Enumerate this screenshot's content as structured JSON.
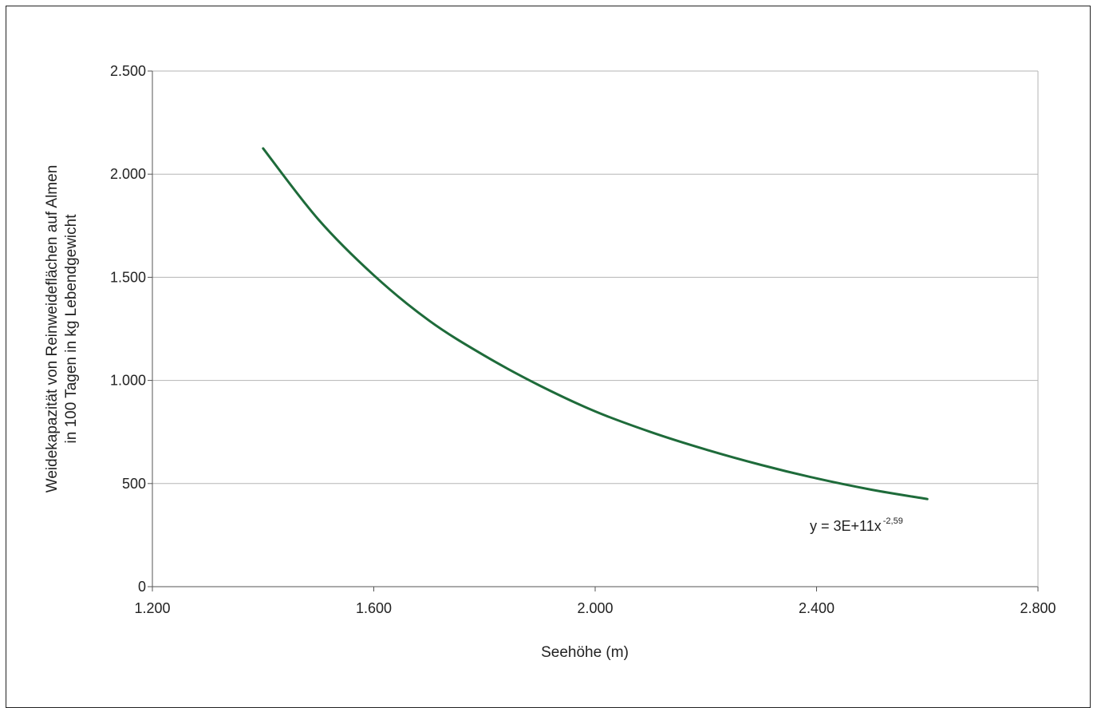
{
  "chart_data": {
    "type": "line",
    "title": "",
    "xlabel": "Seehöhe (m)",
    "ylabel": [
      "Weidekapazität von Reinweideflächen auf Almen",
      "in 100 Tagen in kg Lebendgewicht"
    ],
    "xlim": [
      1200,
      2800
    ],
    "ylim": [
      0,
      2500
    ],
    "x_ticks": [
      1200,
      1600,
      2000,
      2400,
      2800
    ],
    "x_tick_labels": [
      "1.200",
      "1.600",
      "2.000",
      "2.400",
      "2.800"
    ],
    "y_ticks": [
      0,
      500,
      1000,
      1500,
      2000,
      2500
    ],
    "y_tick_labels": [
      "0",
      "500",
      "1.000",
      "1.500",
      "2.000",
      "2.500"
    ],
    "grid": "horizontal",
    "series": [
      {
        "color": "#1e6b3a",
        "x": [
          1400,
          1500,
          1600,
          1700,
          1800,
          1900,
          2000,
          2100,
          2200,
          2300,
          2400,
          2500,
          2600
        ],
        "y": [
          2125,
          1780,
          1510,
          1290,
          1120,
          975,
          850,
          750,
          665,
          590,
          525,
          470,
          425
        ]
      }
    ],
    "annotation": {
      "text": "y = 3E+11x",
      "superscript": "-2,59"
    }
  }
}
